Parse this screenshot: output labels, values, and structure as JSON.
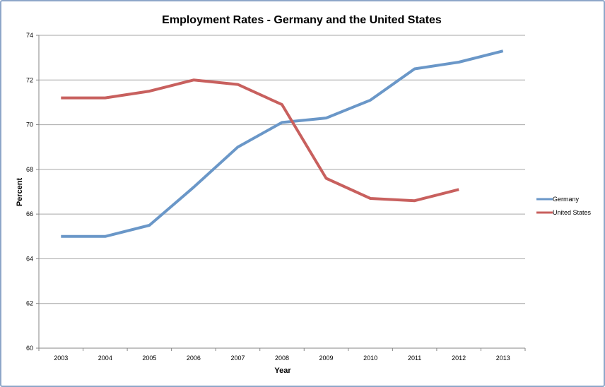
{
  "chart_data": {
    "type": "line",
    "title": "Employment Rates - Germany and the United States",
    "xlabel": "Year",
    "ylabel": "Percent",
    "ylim": [
      60,
      74
    ],
    "yticks": [
      60,
      62,
      64,
      66,
      68,
      70,
      72,
      74
    ],
    "categories": [
      "2003",
      "2004",
      "2005",
      "2006",
      "2007",
      "2008",
      "2009",
      "2010",
      "2011",
      "2012",
      "2013"
    ],
    "grid": true,
    "legend_position": "right",
    "series": [
      {
        "name": "Germany",
        "color": "#6a97c8",
        "values": [
          65.0,
          65.0,
          65.5,
          67.2,
          69.0,
          70.1,
          70.3,
          71.1,
          72.5,
          72.8,
          73.3
        ]
      },
      {
        "name": "United States",
        "color": "#c8605e",
        "values": [
          71.2,
          71.2,
          71.5,
          72.0,
          71.8,
          70.9,
          67.6,
          66.7,
          66.6,
          67.1,
          null
        ]
      }
    ]
  }
}
